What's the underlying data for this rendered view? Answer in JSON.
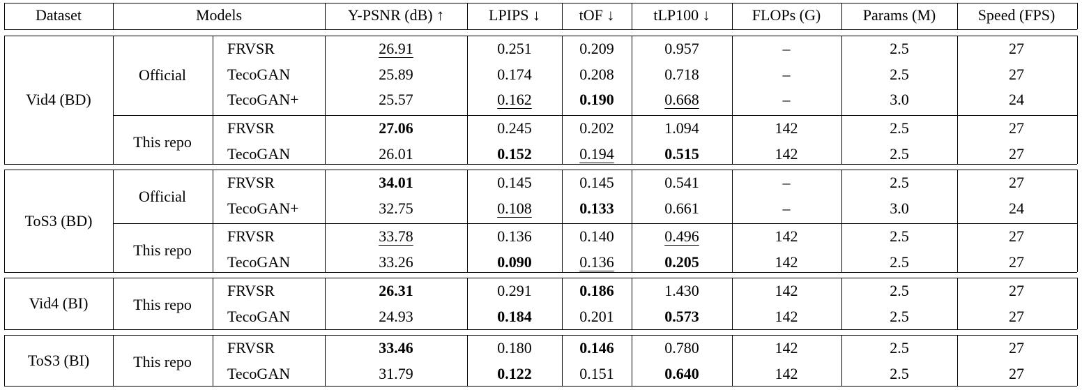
{
  "header": {
    "dataset": "Dataset",
    "models": "Models",
    "psnr": "Y-PSNR (dB) ↑",
    "lpips": "LPIPS ↓",
    "tof": "tOF ↓",
    "tlp": "tLP100 ↓",
    "flops": "FLOPs (G)",
    "params": "Params (M)",
    "speed": "Speed (FPS)"
  },
  "blocks": [
    {
      "dataset": "Vid4 (BD)",
      "groups": [
        {
          "source": "Official",
          "rows": [
            {
              "model": "FRVSR",
              "psnr": "26.91",
              "lpips": "0.251",
              "tof": "0.209",
              "tlp": "0.957",
              "flops": "–",
              "params": "2.5",
              "speed": "27",
              "bold": [],
              "underline": [
                "psnr"
              ]
            },
            {
              "model": "TecoGAN",
              "psnr": "25.89",
              "lpips": "0.174",
              "tof": "0.208",
              "tlp": "0.718",
              "flops": "–",
              "params": "2.5",
              "speed": "27",
              "bold": [],
              "underline": []
            },
            {
              "model": "TecoGAN+",
              "psnr": "25.57",
              "lpips": "0.162",
              "tof": "0.190",
              "tlp": "0.668",
              "flops": "–",
              "params": "3.0",
              "speed": "24",
              "bold": [
                "tof"
              ],
              "underline": [
                "lpips",
                "tlp"
              ]
            }
          ]
        },
        {
          "source": "This repo",
          "rows": [
            {
              "model": "FRVSR",
              "psnr": "27.06",
              "lpips": "0.245",
              "tof": "0.202",
              "tlp": "1.094",
              "flops": "142",
              "params": "2.5",
              "speed": "27",
              "bold": [
                "psnr"
              ],
              "underline": []
            },
            {
              "model": "TecoGAN",
              "psnr": "26.01",
              "lpips": "0.152",
              "tof": "0.194",
              "tlp": "0.515",
              "flops": "142",
              "params": "2.5",
              "speed": "27",
              "bold": [
                "lpips",
                "tlp"
              ],
              "underline": [
                "tof"
              ]
            }
          ]
        }
      ]
    },
    {
      "dataset": "ToS3 (BD)",
      "groups": [
        {
          "source": "Official",
          "rows": [
            {
              "model": "FRVSR",
              "psnr": "34.01",
              "lpips": "0.145",
              "tof": "0.145",
              "tlp": "0.541",
              "flops": "–",
              "params": "2.5",
              "speed": "27",
              "bold": [
                "psnr"
              ],
              "underline": []
            },
            {
              "model": "TecoGAN+",
              "psnr": "32.75",
              "lpips": "0.108",
              "tof": "0.133",
              "tlp": "0.661",
              "flops": "–",
              "params": "3.0",
              "speed": "24",
              "bold": [
                "tof"
              ],
              "underline": [
                "lpips"
              ]
            }
          ]
        },
        {
          "source": "This repo",
          "rows": [
            {
              "model": "FRVSR",
              "psnr": "33.78",
              "lpips": "0.136",
              "tof": "0.140",
              "tlp": "0.496",
              "flops": "142",
              "params": "2.5",
              "speed": "27",
              "bold": [],
              "underline": [
                "psnr",
                "tlp"
              ]
            },
            {
              "model": "TecoGAN",
              "psnr": "33.26",
              "lpips": "0.090",
              "tof": "0.136",
              "tlp": "0.205",
              "flops": "142",
              "params": "2.5",
              "speed": "27",
              "bold": [
                "lpips",
                "tlp"
              ],
              "underline": [
                "tof"
              ]
            }
          ]
        }
      ]
    },
    {
      "dataset": "Vid4 (BI)",
      "groups": [
        {
          "source": "This repo",
          "rows": [
            {
              "model": "FRVSR",
              "psnr": "26.31",
              "lpips": "0.291",
              "tof": "0.186",
              "tlp": "1.430",
              "flops": "142",
              "params": "2.5",
              "speed": "27",
              "bold": [
                "psnr",
                "tof"
              ],
              "underline": []
            },
            {
              "model": "TecoGAN",
              "psnr": "24.93",
              "lpips": "0.184",
              "tof": "0.201",
              "tlp": "0.573",
              "flops": "142",
              "params": "2.5",
              "speed": "27",
              "bold": [
                "lpips",
                "tlp"
              ],
              "underline": []
            }
          ]
        }
      ]
    },
    {
      "dataset": "ToS3 (BI)",
      "groups": [
        {
          "source": "This repo",
          "rows": [
            {
              "model": "FRVSR",
              "psnr": "33.46",
              "lpips": "0.180",
              "tof": "0.146",
              "tlp": "0.780",
              "flops": "142",
              "params": "2.5",
              "speed": "27",
              "bold": [
                "psnr",
                "tof"
              ],
              "underline": []
            },
            {
              "model": "TecoGAN",
              "psnr": "31.79",
              "lpips": "0.122",
              "tof": "0.151",
              "tlp": "0.640",
              "flops": "142",
              "params": "2.5",
              "speed": "27",
              "bold": [
                "lpips",
                "tlp"
              ],
              "underline": []
            }
          ]
        }
      ]
    }
  ]
}
